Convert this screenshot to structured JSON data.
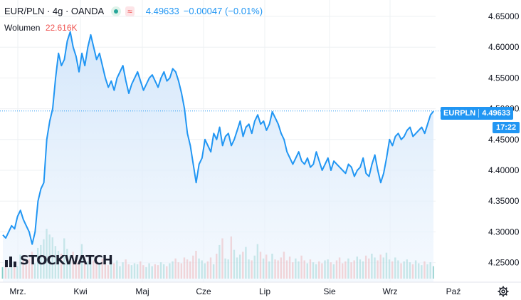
{
  "header": {
    "symbol": "EUR/PLN · 4g · OANDA",
    "approx_symbol": "≈",
    "last_value": "4.49633",
    "change": "−0.00047 (−0.01%)"
  },
  "volume_legend": {
    "label": "Wolumen",
    "value": "22.616K"
  },
  "price_badge": {
    "ticker": "EURPLN",
    "value": "4.49633",
    "countdown": "17:22"
  },
  "logo": {
    "text": "STOCKWATCH"
  },
  "colors": {
    "line": "#2196f3",
    "area_top": "#d6e8fb",
    "area_bottom": "#eef5fd",
    "vol_up": "#26a69a",
    "vol_down": "#ef5350",
    "grid": "#eef0f3",
    "axis_text": "#131722"
  },
  "chart_data": {
    "type": "area",
    "title": "EUR/PLN · 4g · OANDA",
    "xlabel": "",
    "ylabel": "",
    "x_ticks": [
      "Mrz.",
      "Kwi",
      "Maj",
      "Cze",
      "Lip",
      "Sie",
      "Wrz",
      "Paź"
    ],
    "y_ticks": [
      4.25,
      4.3,
      4.35,
      4.4,
      4.45,
      4.5,
      4.55,
      4.6,
      4.65
    ],
    "ylim": [
      4.23,
      4.67
    ],
    "last_price": 4.49633,
    "grid": true,
    "series": [
      {
        "values": [
          4.295,
          4.29,
          4.3,
          4.31,
          4.305,
          4.325,
          4.335,
          4.32,
          4.31,
          4.3,
          4.28,
          4.3,
          4.35,
          4.37,
          4.38,
          4.45,
          4.48,
          4.5,
          4.55,
          4.59,
          4.57,
          4.58,
          4.61,
          4.625,
          4.6,
          4.585,
          4.56,
          4.59,
          4.57,
          4.6,
          4.62,
          4.6,
          4.58,
          4.59,
          4.57,
          4.55,
          4.535,
          4.545,
          4.53,
          4.55,
          4.56,
          4.57,
          4.545,
          4.525,
          4.54,
          4.55,
          4.56,
          4.545,
          4.53,
          4.54,
          4.55,
          4.555,
          4.545,
          4.535,
          4.55,
          4.56,
          4.545,
          4.55,
          4.565,
          4.56,
          4.545,
          4.525,
          4.5,
          4.46,
          4.44,
          4.41,
          4.38,
          4.41,
          4.42,
          4.45,
          4.44,
          4.43,
          4.46,
          4.45,
          4.47,
          4.44,
          4.455,
          4.46,
          4.44,
          4.45,
          4.465,
          4.48,
          4.455,
          4.47,
          4.475,
          4.46,
          4.48,
          4.49,
          4.475,
          4.48,
          4.465,
          4.475,
          4.495,
          4.485,
          4.475,
          4.46,
          4.45,
          4.43,
          4.42,
          4.41,
          4.42,
          4.43,
          4.415,
          4.41,
          4.42,
          4.405,
          4.41,
          4.43,
          4.415,
          4.4,
          4.41,
          4.42,
          4.4,
          4.415,
          4.41,
          4.405,
          4.4,
          4.395,
          4.41,
          4.405,
          4.39,
          4.4,
          4.405,
          4.42,
          4.395,
          4.39,
          4.41,
          4.425,
          4.4,
          4.38,
          4.395,
          4.42,
          4.45,
          4.44,
          4.455,
          4.46,
          4.45,
          4.455,
          4.465,
          4.47,
          4.455,
          4.46,
          4.465,
          4.47,
          4.46,
          4.475,
          4.49,
          4.496
        ],
        "volume": [
          1.2,
          1.5,
          1.1,
          1.8,
          1.6,
          1.3,
          2.5,
          1.9,
          1.4,
          2.1,
          2.8,
          1.6,
          3.2,
          3.5,
          4.1,
          5.2,
          4.6,
          4.3,
          3.4,
          2.9,
          2.6,
          4.2,
          3.1,
          2.4,
          2.8,
          2.2,
          1.9,
          3.6,
          2.1,
          1.8,
          2.4,
          1.9,
          2.2,
          1.5,
          2.1,
          1.7,
          1.4,
          1.8,
          1.6,
          1.9,
          1.3,
          1.7,
          2.0,
          1.5,
          1.4,
          1.6,
          1.5,
          1.8,
          1.4,
          1.2,
          1.6,
          1.3,
          1.5,
          1.4,
          1.7,
          1.5,
          1.3,
          1.6,
          1.8,
          2.1,
          1.7,
          1.6,
          2.2,
          2.0,
          1.8,
          2.4,
          2.9,
          2.1,
          1.9,
          1.6,
          1.8,
          2.2,
          1.5,
          2.6,
          3.5,
          4.2,
          2.1,
          2.0,
          4.4,
          3.0,
          2.2,
          2.5,
          2.8,
          3.3,
          2.0,
          1.9,
          2.4,
          3.6,
          2.8,
          2.1,
          2.5,
          1.8,
          2.6,
          2.0,
          1.9,
          2.2,
          2.8,
          1.9,
          2.3,
          1.7,
          2.1,
          1.8,
          2.4,
          1.9,
          1.6,
          2.0,
          1.7,
          1.5,
          1.8,
          1.6,
          1.9,
          2.0,
          1.7,
          1.5,
          1.9,
          2.2,
          1.6,
          1.8,
          2.1,
          1.7,
          1.9,
          2.3,
          2.0,
          1.8,
          2.4,
          2.1,
          2.6,
          2.2,
          1.9,
          2.5,
          2.2,
          2.7,
          2.0,
          1.8,
          2.2,
          1.9,
          1.6,
          1.8,
          2.0,
          1.7,
          1.5,
          1.9,
          1.6,
          1.4,
          1.8,
          1.5,
          1.7,
          1.3
        ]
      }
    ]
  }
}
